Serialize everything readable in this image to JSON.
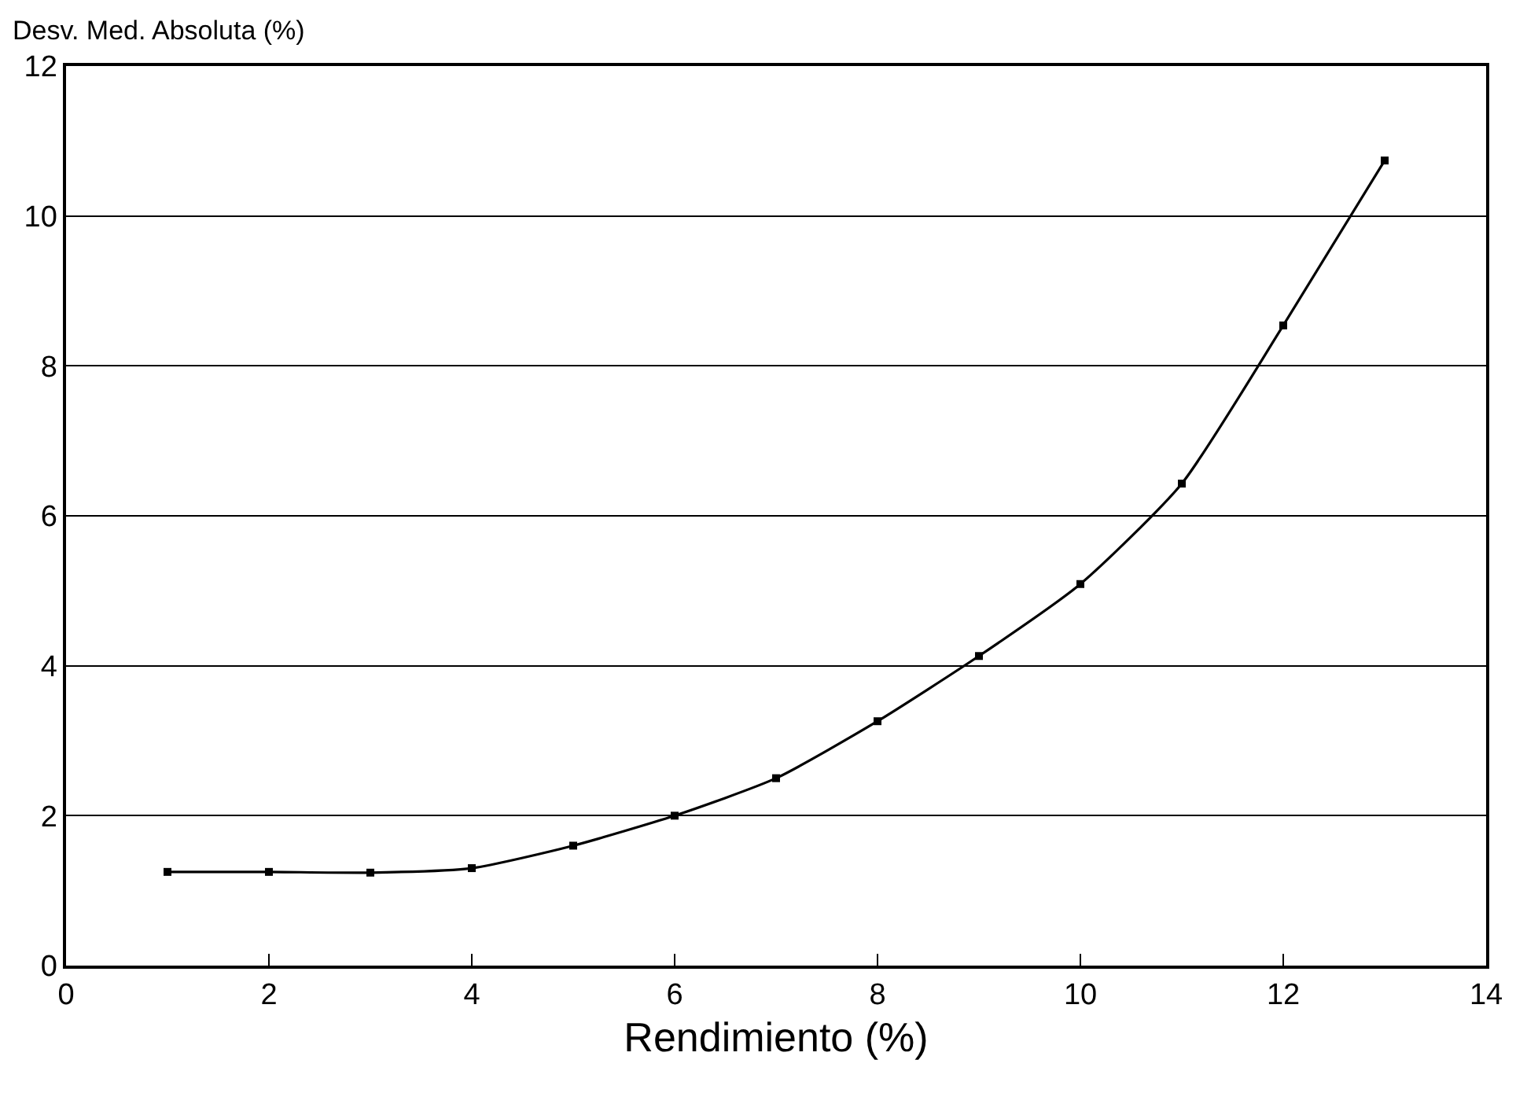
{
  "chart_data": {
    "type": "line",
    "xlabel": "Rendimiento (%)",
    "ylabel": "Desv. Med. Absoluta (%)",
    "x": [
      1,
      2,
      3,
      4,
      5,
      6,
      7,
      8,
      9,
      10,
      11,
      12,
      13
    ],
    "series": [
      {
        "color": "#000000",
        "values": [
          1.25,
          1.25,
          1.24,
          1.3,
          1.6,
          2.0,
          2.5,
          3.26,
          4.13,
          5.09,
          6.43,
          8.54,
          10.74
        ]
      }
    ],
    "xlim": [
      0,
      14
    ],
    "xticks": [
      0,
      2,
      4,
      6,
      8,
      10,
      12,
      14
    ],
    "ylim": [
      0,
      12
    ],
    "yticks": [
      0,
      2,
      4,
      6,
      8,
      10,
      12
    ],
    "grid": "y",
    "marker": "square",
    "line_style": "solid"
  }
}
